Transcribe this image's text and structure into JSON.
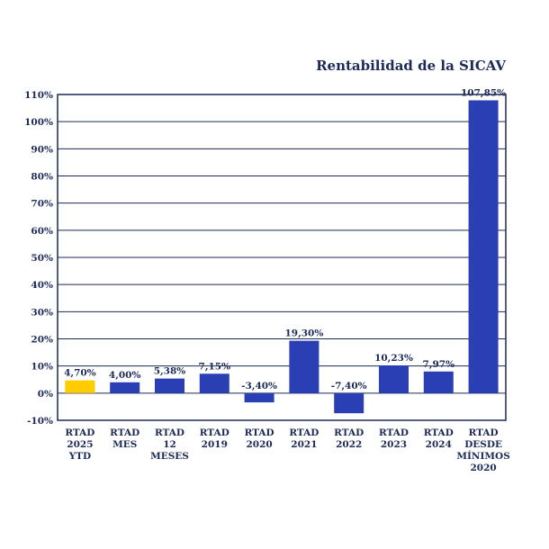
{
  "chart_data": {
    "type": "bar",
    "title": "Rentabilidad de la SICAV",
    "xlabel": "",
    "ylabel": "",
    "ylim": [
      -10,
      110
    ],
    "yticks": [
      "110%",
      "100%",
      "90%",
      "80%",
      "70%",
      "60%",
      "50%",
      "40%",
      "30%",
      "20%",
      "10%",
      "0%",
      "-10%"
    ],
    "ytick_values": [
      110,
      100,
      90,
      80,
      70,
      60,
      50,
      40,
      30,
      20,
      10,
      0,
      -10
    ],
    "grid": true,
    "legend": "none",
    "categories": [
      [
        "RTAD",
        "2025",
        "YTD"
      ],
      [
        "RTAD",
        "MES"
      ],
      [
        "RTAD",
        "12",
        "MESES"
      ],
      [
        "RTAD",
        "2019"
      ],
      [
        "RTAD",
        "2020"
      ],
      [
        "RTAD",
        "2021"
      ],
      [
        "RTAD",
        "2022"
      ],
      [
        "RTAD",
        "2023"
      ],
      [
        "RTAD",
        "2024"
      ],
      [
        "RTAD",
        "DESDE",
        "MÍNIMOS",
        "2020"
      ]
    ],
    "values": [
      4.7,
      4.0,
      5.38,
      7.15,
      -3.4,
      19.3,
      -7.4,
      10.23,
      7.97,
      107.85
    ],
    "value_labels": [
      "4,70%",
      "4,00%",
      "5,38%",
      "7,15%",
      "-3,40%",
      "19,30%",
      "-7,40%",
      "10,23%",
      "7,97%",
      "107,85%"
    ],
    "colors": [
      "#ffcc00",
      "#2b3fb5",
      "#2b3fb5",
      "#2b3fb5",
      "#2b3fb5",
      "#2b3fb5",
      "#2b3fb5",
      "#2b3fb5",
      "#2b3fb5",
      "#2b3fb5"
    ]
  }
}
